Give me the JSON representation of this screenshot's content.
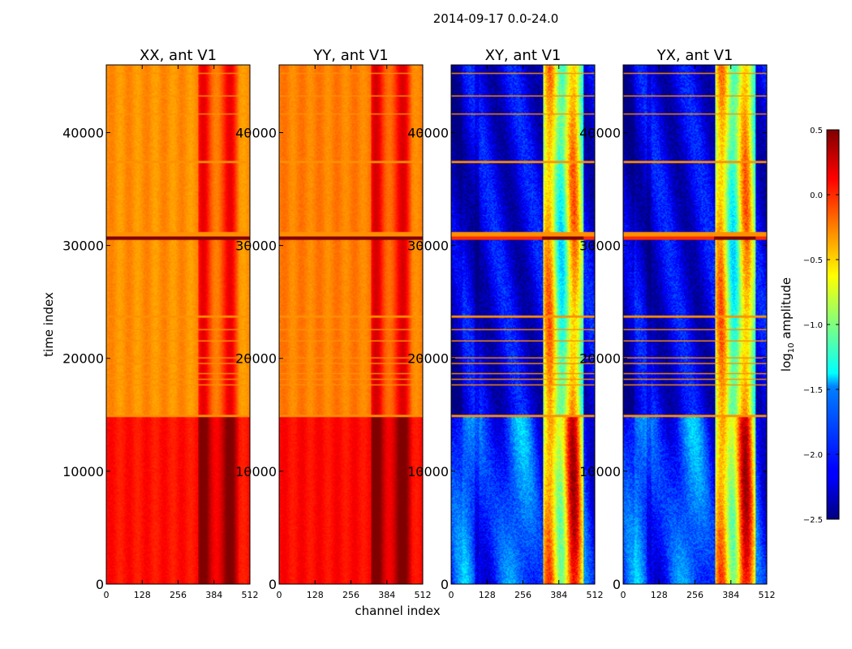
{
  "figure": {
    "suptitle": "2014-09-17 0.0-24.0",
    "xlabel": "channel index",
    "ylabel": "time index"
  },
  "chart_data": [
    {
      "type": "heatmap",
      "title": "XX, ant V1",
      "xlabel": "channel index",
      "ylabel": "time index",
      "xlim": [
        0,
        512
      ],
      "ylim": [
        0,
        46000
      ],
      "xticks": [
        0,
        128,
        256,
        384,
        512
      ],
      "yticks": [
        0,
        10000,
        20000,
        30000,
        40000
      ],
      "base_value": -0.3,
      "early_base_value": 0.08
    },
    {
      "type": "heatmap",
      "title": "YY, ant V1",
      "xlabel": "channel index",
      "ylabel": "time index",
      "xlim": [
        0,
        512
      ],
      "ylim": [
        0,
        46000
      ],
      "xticks": [
        0,
        128,
        256,
        384,
        512
      ],
      "yticks": [
        0,
        10000,
        20000,
        30000,
        40000
      ],
      "base_value": -0.25,
      "early_base_value": 0.1
    },
    {
      "type": "heatmap",
      "title": "XY, ant V1",
      "xlabel": "channel index",
      "ylabel": "time index",
      "xlim": [
        0,
        512
      ],
      "ylim": [
        0,
        46000
      ],
      "xticks": [
        0,
        128,
        256,
        384,
        512
      ],
      "yticks": [
        0,
        10000,
        20000,
        30000,
        40000
      ],
      "base_value": -2.2,
      "early_base_value": -1.9
    },
    {
      "type": "heatmap",
      "title": "YX, ant V1",
      "xlabel": "channel index",
      "ylabel": "time index",
      "xlim": [
        0,
        512
      ],
      "ylim": [
        0,
        46000
      ],
      "xticks": [
        0,
        128,
        256,
        384,
        512
      ],
      "yticks": [
        0,
        10000,
        20000,
        30000,
        40000
      ],
      "base_value": -2.2,
      "early_base_value": -1.9
    }
  ],
  "colorbar": {
    "label": "log10 amplitude",
    "label_main": "log",
    "label_sub": "10",
    "label_rest": " amplitude",
    "colormap": "jet",
    "range": [
      -2.5,
      0.5
    ],
    "ticks": [
      0.5,
      0.0,
      -0.5,
      -1.0,
      -1.5,
      -2.0,
      -2.5
    ],
    "tick_labels": [
      "0.5",
      "0.0",
      "−0.5",
      "−1.0",
      "−1.5",
      "−2.0",
      "−2.5"
    ]
  }
}
